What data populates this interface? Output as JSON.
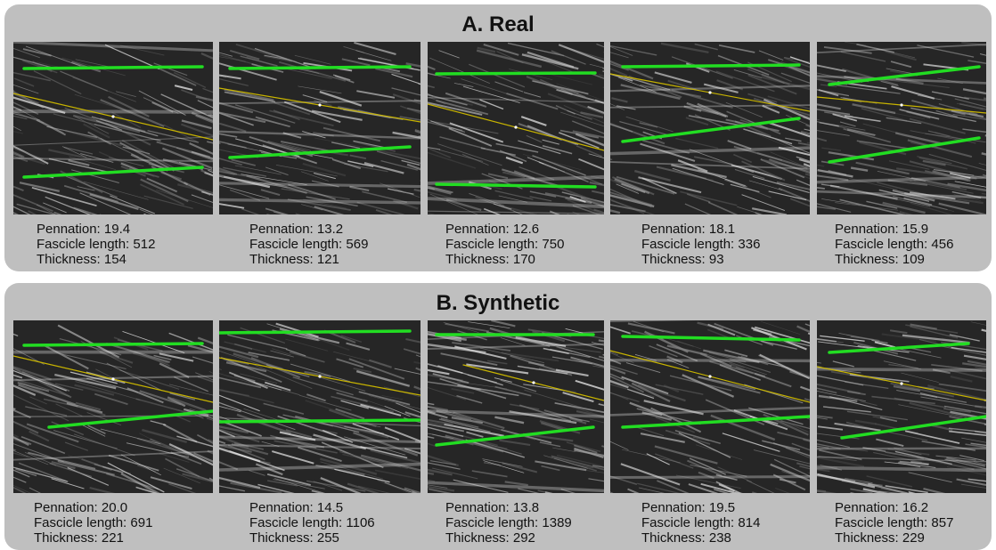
{
  "panels": [
    {
      "title": "A. Real",
      "items": [
        {
          "pennation": "Pennation: 19.4",
          "fascicle": "Fascicle length: 512",
          "thickness": "Thickness: 154"
        },
        {
          "pennation": "Pennation: 13.2",
          "fascicle": "Fascicle length: 569",
          "thickness": "Thickness: 121"
        },
        {
          "pennation": "Pennation: 12.6",
          "fascicle": "Fascicle length: 750",
          "thickness": "Thickness: 170"
        },
        {
          "pennation": "Pennation: 18.1",
          "fascicle": "Fascicle length: 336",
          "thickness": "Thickness: 93"
        },
        {
          "pennation": "Pennation: 15.9",
          "fascicle": "Fascicle length: 456",
          "thickness": "Thickness: 109"
        }
      ]
    },
    {
      "title": "B. Synthetic",
      "items": [
        {
          "pennation": "Pennation: 20.0",
          "fascicle": "Fascicle length: 691",
          "thickness": "Thickness: 221"
        },
        {
          "pennation": "Pennation: 14.5",
          "fascicle": "Fascicle length: 1106",
          "thickness": "Thickness: 255"
        },
        {
          "pennation": "Pennation: 13.8",
          "fascicle": "Fascicle length: 1389",
          "thickness": "Thickness: 292"
        },
        {
          "pennation": "Pennation: 19.5",
          "fascicle": "Fascicle length: 814",
          "thickness": "Thickness: 238"
        },
        {
          "pennation": "Pennation: 16.2",
          "fascicle": "Fascicle length: 857",
          "thickness": "Thickness: 229"
        }
      ]
    }
  ],
  "colors": {
    "panel_background": "#bfbfbf",
    "aponeurosis_line": "#22dd22",
    "fascicle_line": "#c8b400"
  }
}
